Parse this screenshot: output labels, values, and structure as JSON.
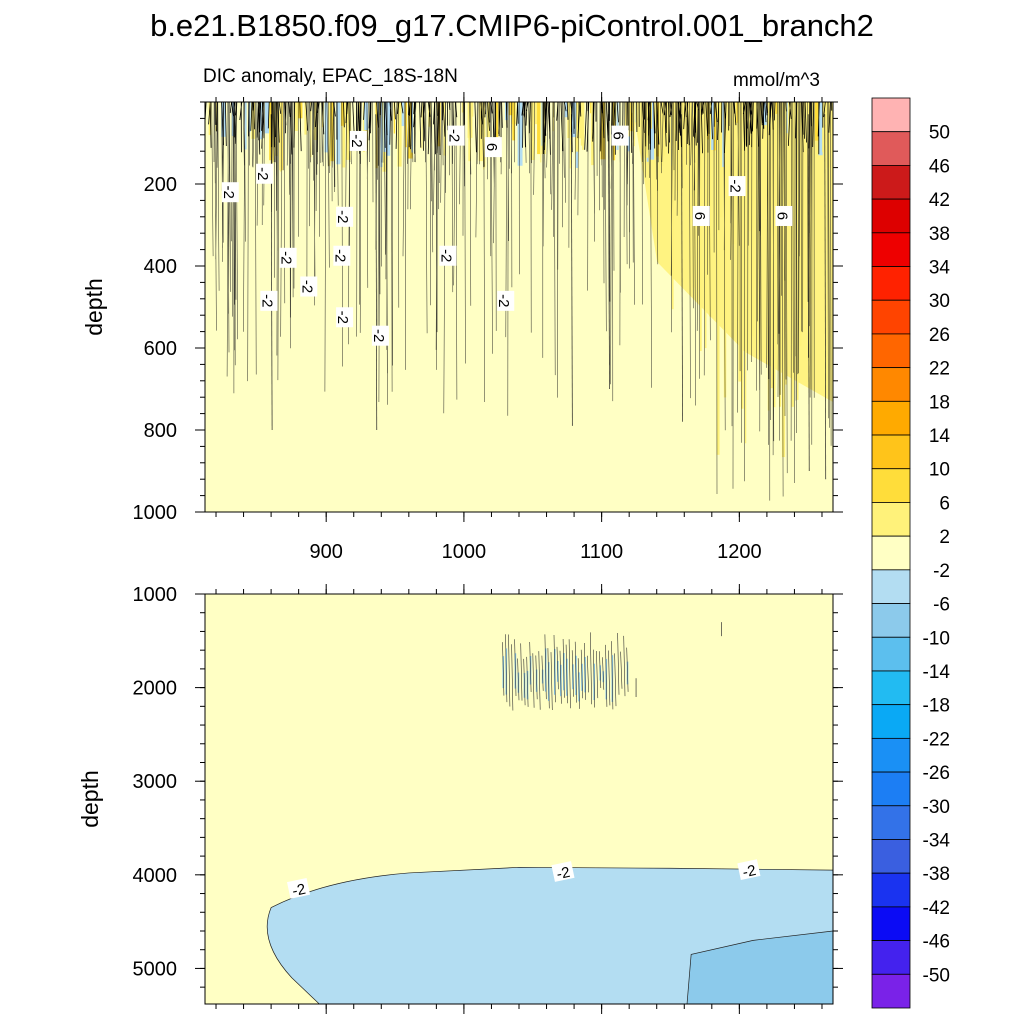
{
  "figure": {
    "title": "b.e21.B1850.f09_g17.CMIP6-piControl.001_branch2",
    "subtitle_left": "DIC anomaly, EPAC_18S-18N",
    "subtitle_right": "mmol/m^3"
  },
  "chart_data": [
    {
      "type": "heatmap",
      "panel": "upper",
      "title": "DIC anomaly, EPAC_18S-18N",
      "units": "mmol/m^3",
      "xlabel": "",
      "ylabel": "depth",
      "xlim": [
        812,
        1268
      ],
      "ylim": [
        1000,
        0
      ],
      "xticks": [
        900,
        1000,
        1100,
        1200
      ],
      "xtick_labels": [
        "900",
        "1000",
        "1100",
        "1200"
      ],
      "yticks": [
        200,
        400,
        600,
        800,
        1000
      ],
      "ytick_labels": [
        "200",
        "400",
        "600",
        "800",
        "1000"
      ],
      "contour_labels": [
        {
          "text": "-2",
          "x": 830,
          "y": 220
        },
        {
          "text": "-2",
          "x": 855,
          "y": 175
        },
        {
          "text": "-2",
          "x": 923,
          "y": 95
        },
        {
          "text": "-2",
          "x": 994,
          "y": 82
        },
        {
          "text": "6",
          "x": 1021,
          "y": 110
        },
        {
          "text": "6",
          "x": 1113,
          "y": 82
        },
        {
          "text": "-2",
          "x": 1198,
          "y": 205
        },
        {
          "text": "6",
          "x": 1172,
          "y": 278
        },
        {
          "text": "6",
          "x": 1232,
          "y": 278
        },
        {
          "text": "-2",
          "x": 913,
          "y": 280
        },
        {
          "text": "-2",
          "x": 911,
          "y": 375
        },
        {
          "text": "-2",
          "x": 872,
          "y": 380
        },
        {
          "text": "-2",
          "x": 988,
          "y": 375
        },
        {
          "text": "-2",
          "x": 887,
          "y": 450
        },
        {
          "text": "-2",
          "x": 858,
          "y": 485
        },
        {
          "text": "-2",
          "x": 1030,
          "y": 485
        },
        {
          "text": "-2",
          "x": 913,
          "y": 525
        },
        {
          "text": "-2",
          "x": 939,
          "y": 570
        }
      ]
    },
    {
      "type": "heatmap",
      "panel": "lower",
      "xlabel": "",
      "ylabel": "depth",
      "xlim": [
        812,
        1268
      ],
      "ylim": [
        5380,
        1000
      ],
      "yticks": [
        1000,
        2000,
        3000,
        4000,
        5000
      ],
      "ytick_labels": [
        "1000",
        "2000",
        "3000",
        "4000",
        "5000"
      ],
      "contour_labels": [
        {
          "text": "-2",
          "x": 880,
          "y": 4150
        },
        {
          "text": "-2",
          "x": 1072,
          "y": 3970
        },
        {
          "text": "-2",
          "x": 1207,
          "y": 3950
        }
      ]
    }
  ],
  "colorbar": {
    "labels": [
      "50",
      "46",
      "42",
      "38",
      "34",
      "30",
      "26",
      "22",
      "18",
      "14",
      "10",
      "6",
      "2",
      "-2",
      "-6",
      "-10",
      "-14",
      "-18",
      "-22",
      "-26",
      "-30",
      "-34",
      "-38",
      "-42",
      "-46",
      "-50"
    ],
    "colors": [
      "#ffb3b3",
      "#e05a5a",
      "#cc1a1a",
      "#dd0000",
      "#ee0000",
      "#ff2200",
      "#ff4400",
      "#ff6600",
      "#ff8800",
      "#ffaa00",
      "#ffc41a",
      "#ffdd3a",
      "#fff27a",
      "#ffffc4",
      "#b3ddf2",
      "#8ccaeb",
      "#5cbfee",
      "#22bbf2",
      "#0aa9f5",
      "#1a90f5",
      "#1c7ef4",
      "#3372e8",
      "#3a5fe0",
      "#1a33f0",
      "#0b0bf5",
      "#4422ee",
      "#7a22e8"
    ]
  },
  "colors": {
    "neutral": "#ffffc4",
    "pos_light": "#fff27a",
    "pos_mid": "#ffdd3a",
    "neg_light": "#b3ddf2",
    "neg_mid": "#8ccaeb"
  }
}
